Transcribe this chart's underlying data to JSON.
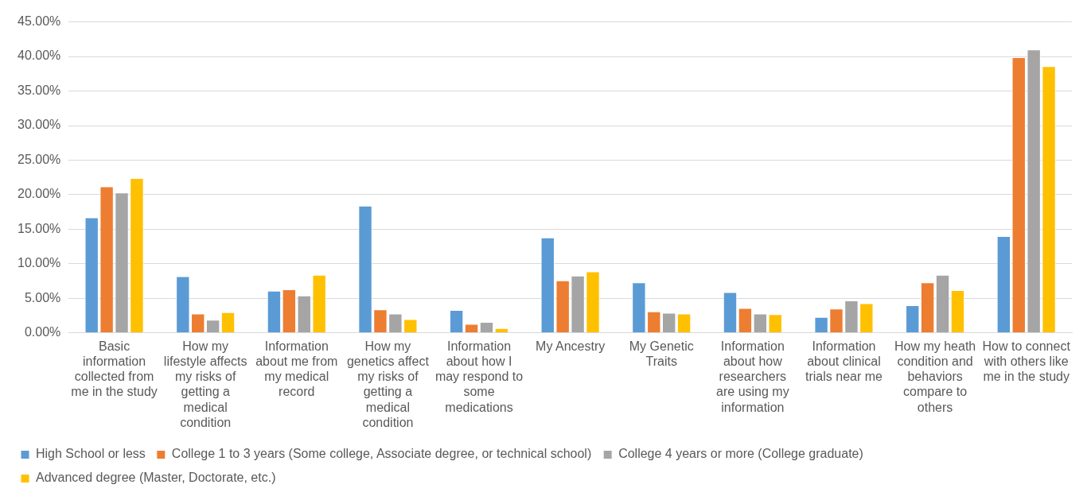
{
  "chart_data": {
    "type": "bar",
    "categories": [
      "Basic information collected from me in the study",
      "How my lifestyle affects my risks of getting a medical condition",
      "Information about me from my medical record",
      "How my genetics affect my risks of getting a medical condition",
      "Information about how I may respond to some medications",
      "My Ancestry",
      "My Genetic Traits",
      "Information about how researchers are using my information",
      "Information about clinical trials near me",
      "How my heath condition and behaviors compare to others",
      "How to connect with others like me in the study"
    ],
    "series": [
      {
        "name": "High School or less",
        "color": "#5b9bd5",
        "values": [
          16.7,
          8.2,
          6.1,
          18.4,
          3.3,
          13.8,
          7.3,
          5.9,
          2.3,
          4.0,
          14.0
        ]
      },
      {
        "name": "College 1 to 3 years (Some college, Associate degree, or technical school)",
        "color": "#ed7d31",
        "values": [
          21.2,
          2.8,
          6.3,
          3.4,
          1.3,
          7.6,
          3.1,
          3.6,
          3.5,
          7.3,
          39.9
        ]
      },
      {
        "name": "College 4 years or more (College graduate)",
        "color": "#a5a5a5",
        "values": [
          20.3,
          1.9,
          5.4,
          2.8,
          1.6,
          8.3,
          2.9,
          2.8,
          4.7,
          8.4,
          41.0
        ]
      },
      {
        "name": "Advanced degree (Master, Doctorate, etc.)",
        "color": "#ffc000",
        "values": [
          22.4,
          3.0,
          8.4,
          2.0,
          0.7,
          8.9,
          2.8,
          2.7,
          4.3,
          6.2,
          38.6
        ]
      }
    ],
    "ylim": [
      0,
      45
    ],
    "yticks": [
      {
        "value": 0,
        "label": "0.00%"
      },
      {
        "value": 5,
        "label": "5.00%"
      },
      {
        "value": 10,
        "label": "10.00%"
      },
      {
        "value": 15,
        "label": "15.00%"
      },
      {
        "value": 20,
        "label": "20.00%"
      },
      {
        "value": 25,
        "label": "25.00%"
      },
      {
        "value": 30,
        "label": "30.00%"
      },
      {
        "value": 35,
        "label": "35.00%"
      },
      {
        "value": 40,
        "label": "40.00%"
      },
      {
        "value": 45,
        "label": "45.00%"
      }
    ],
    "grid": "y",
    "legend": "bottom"
  }
}
